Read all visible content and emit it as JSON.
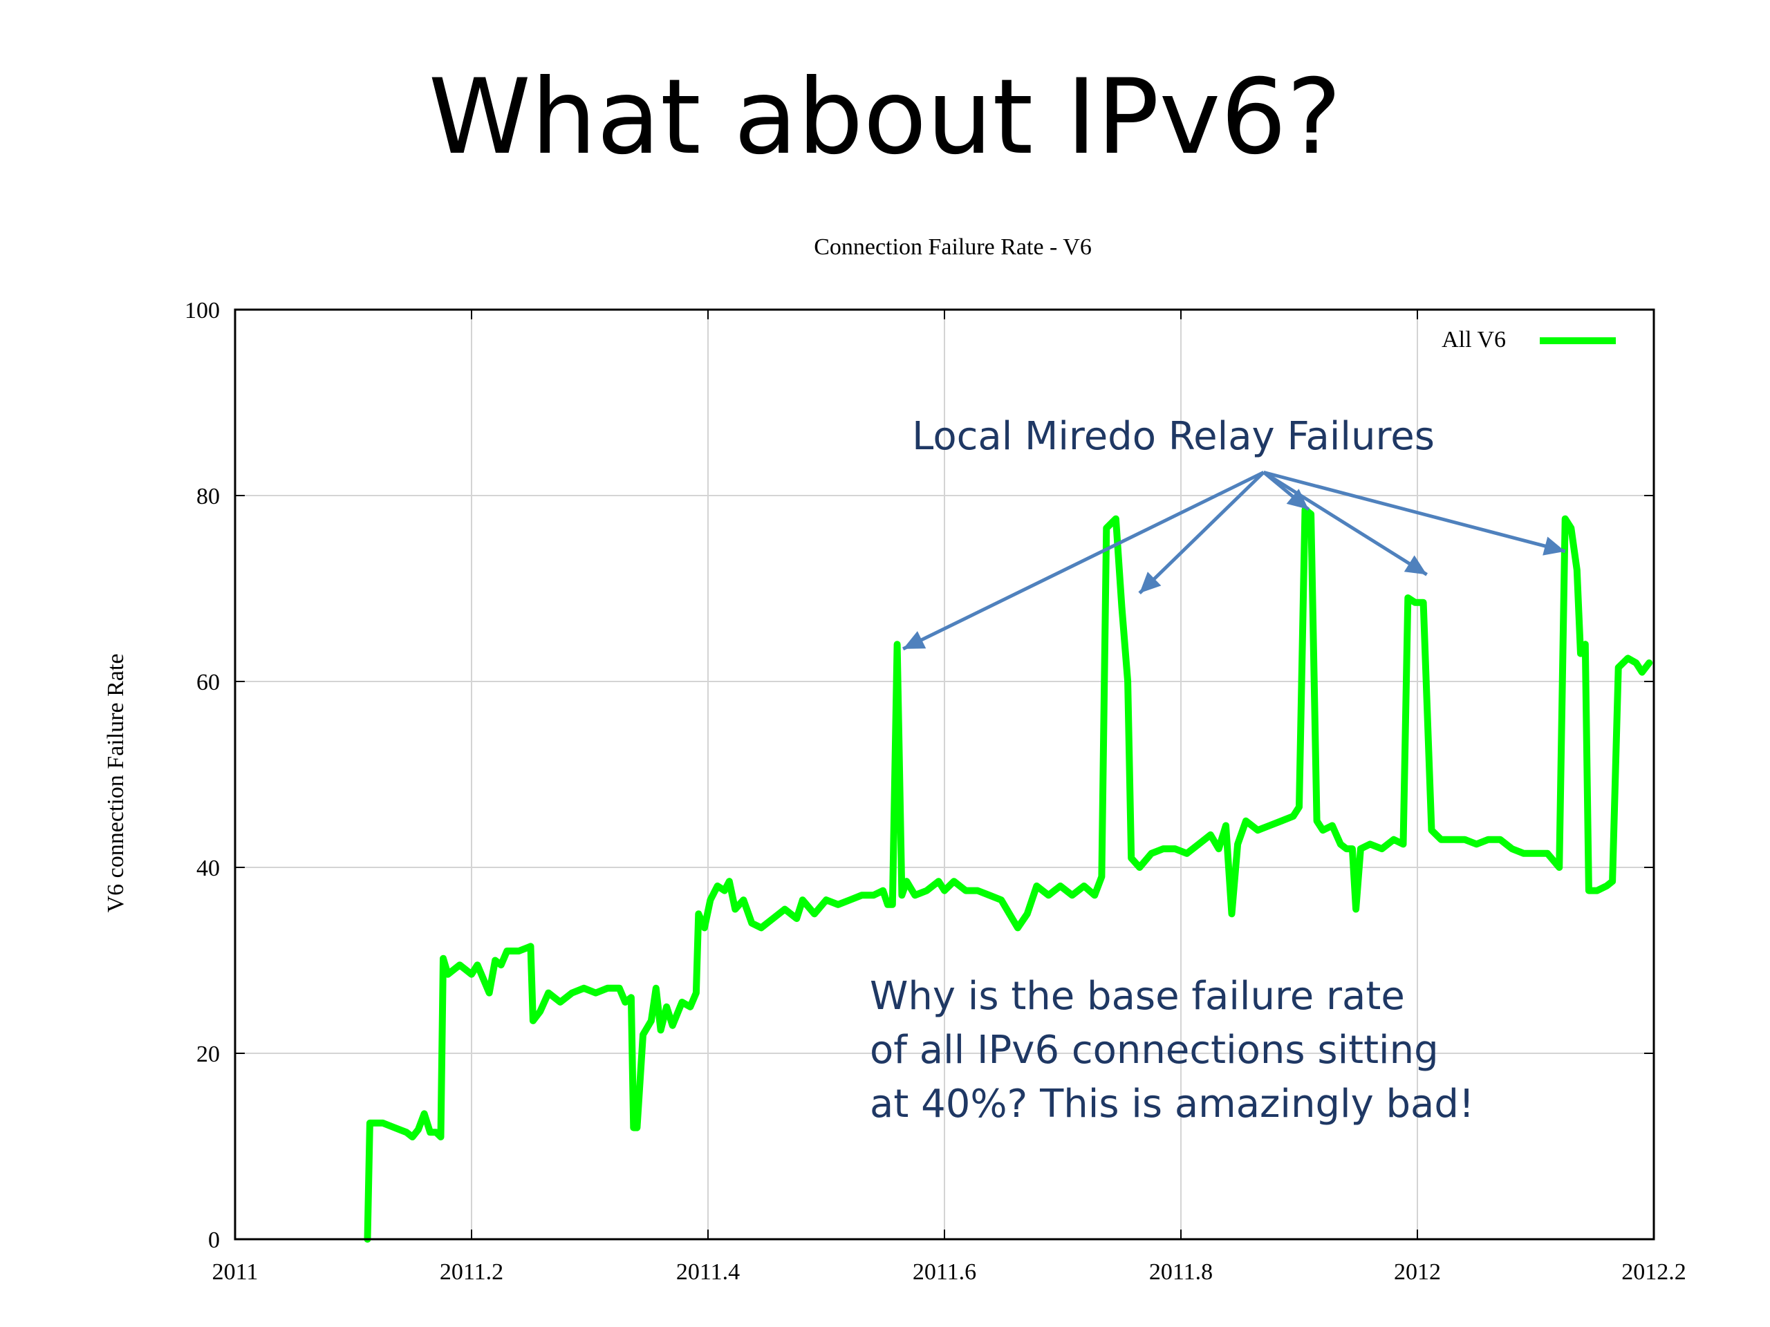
{
  "slide": {
    "title": "What about IPv6?"
  },
  "annotations": {
    "relay_label": "Local Miredo Relay Failures",
    "question_lines": [
      "Why is the base failure rate",
      "of all IPv6 connections sitting",
      "at 40%? This is amazingly bad!"
    ],
    "text_color": "#1f3864",
    "arrow_color": "#4f81bd",
    "arrow_targets": [
      {
        "x": 2011.565,
        "y": 63.5
      },
      {
        "x": 2011.765,
        "y": 69.5
      },
      {
        "x": 2011.908,
        "y": 78.5
      },
      {
        "x": 2012.008,
        "y": 71.5
      },
      {
        "x": 2012.125,
        "y": 74.0
      }
    ],
    "arrow_origin": {
      "x": 2011.87,
      "y": 82.5
    }
  },
  "chart_data": {
    "type": "line",
    "title": "Connection Failure Rate - V6",
    "xlabel": "",
    "ylabel": "V6 connection Failure Rate",
    "xlim": [
      2011,
      2012.2
    ],
    "ylim": [
      0,
      100
    ],
    "xticks": [
      "2011",
      "2011.2",
      "2011.4",
      "2011.6",
      "2011.8",
      "2012",
      "2012.2"
    ],
    "yticks": [
      "0",
      "20",
      "40",
      "60",
      "80",
      "100"
    ],
    "grid": true,
    "legend": "top-right",
    "series": [
      {
        "name": "All V6",
        "color": "#00ff00",
        "points": [
          [
            2011.112,
            0
          ],
          [
            2011.114,
            12.5
          ],
          [
            2011.125,
            12.5
          ],
          [
            2011.135,
            12
          ],
          [
            2011.145,
            11.5
          ],
          [
            2011.15,
            11
          ],
          [
            2011.155,
            11.8
          ],
          [
            2011.16,
            13.5
          ],
          [
            2011.165,
            11.5
          ],
          [
            2011.17,
            11.5
          ],
          [
            2011.174,
            11
          ],
          [
            2011.176,
            30.2
          ],
          [
            2011.18,
            28.5
          ],
          [
            2011.19,
            29.5
          ],
          [
            2011.2,
            28.5
          ],
          [
            2011.205,
            29.5
          ],
          [
            2011.21,
            28
          ],
          [
            2011.215,
            26.5
          ],
          [
            2011.22,
            30
          ],
          [
            2011.225,
            29.5
          ],
          [
            2011.23,
            31
          ],
          [
            2011.24,
            31
          ],
          [
            2011.25,
            31.5
          ],
          [
            2011.252,
            23.5
          ],
          [
            2011.258,
            24.5
          ],
          [
            2011.265,
            26.5
          ],
          [
            2011.275,
            25.5
          ],
          [
            2011.285,
            26.5
          ],
          [
            2011.295,
            27
          ],
          [
            2011.305,
            26.5
          ],
          [
            2011.315,
            27
          ],
          [
            2011.325,
            27
          ],
          [
            2011.33,
            25.5
          ],
          [
            2011.335,
            26
          ],
          [
            2011.337,
            12
          ],
          [
            2011.34,
            12
          ],
          [
            2011.345,
            22
          ],
          [
            2011.352,
            23.5
          ],
          [
            2011.356,
            27
          ],
          [
            2011.36,
            22.5
          ],
          [
            2011.365,
            25
          ],
          [
            2011.37,
            23
          ],
          [
            2011.378,
            25.5
          ],
          [
            2011.385,
            25
          ],
          [
            2011.39,
            26.5
          ],
          [
            2011.392,
            35
          ],
          [
            2011.397,
            33.5
          ],
          [
            2011.402,
            36.5
          ],
          [
            2011.408,
            38
          ],
          [
            2011.414,
            37.5
          ],
          [
            2011.418,
            38.5
          ],
          [
            2011.423,
            35.5
          ],
          [
            2011.43,
            36.5
          ],
          [
            2011.437,
            34
          ],
          [
            2011.445,
            33.5
          ],
          [
            2011.455,
            34.5
          ],
          [
            2011.465,
            35.5
          ],
          [
            2011.475,
            34.5
          ],
          [
            2011.48,
            36.5
          ],
          [
            2011.49,
            35
          ],
          [
            2011.5,
            36.5
          ],
          [
            2011.51,
            36
          ],
          [
            2011.52,
            36.5
          ],
          [
            2011.53,
            37
          ],
          [
            2011.54,
            37
          ],
          [
            2011.548,
            37.5
          ],
          [
            2011.552,
            36
          ],
          [
            2011.556,
            36
          ],
          [
            2011.56,
            64
          ],
          [
            2011.564,
            37
          ],
          [
            2011.568,
            38.5
          ],
          [
            2011.575,
            37
          ],
          [
            2011.585,
            37.5
          ],
          [
            2011.595,
            38.5
          ],
          [
            2011.6,
            37.5
          ],
          [
            2011.608,
            38.5
          ],
          [
            2011.618,
            37.5
          ],
          [
            2011.628,
            37.5
          ],
          [
            2011.638,
            37
          ],
          [
            2011.648,
            36.5
          ],
          [
            2011.655,
            35
          ],
          [
            2011.662,
            33.5
          ],
          [
            2011.67,
            35
          ],
          [
            2011.678,
            38
          ],
          [
            2011.688,
            37
          ],
          [
            2011.698,
            38
          ],
          [
            2011.708,
            37
          ],
          [
            2011.718,
            38
          ],
          [
            2011.727,
            37
          ],
          [
            2011.733,
            39
          ],
          [
            2011.737,
            76.5
          ],
          [
            2011.745,
            77.5
          ],
          [
            2011.75,
            68
          ],
          [
            2011.755,
            60
          ],
          [
            2011.758,
            41
          ],
          [
            2011.765,
            40
          ],
          [
            2011.775,
            41.5
          ],
          [
            2011.785,
            42
          ],
          [
            2011.795,
            42
          ],
          [
            2011.805,
            41.5
          ],
          [
            2011.815,
            42.5
          ],
          [
            2011.825,
            43.5
          ],
          [
            2011.832,
            42
          ],
          [
            2011.838,
            44.5
          ],
          [
            2011.843,
            35
          ],
          [
            2011.848,
            42.5
          ],
          [
            2011.855,
            45
          ],
          [
            2011.865,
            44
          ],
          [
            2011.875,
            44.5
          ],
          [
            2011.885,
            45
          ],
          [
            2011.895,
            45.5
          ],
          [
            2011.9,
            46.5
          ],
          [
            2011.905,
            78.5
          ],
          [
            2011.91,
            78
          ],
          [
            2011.915,
            45
          ],
          [
            2011.92,
            44
          ],
          [
            2011.928,
            44.5
          ],
          [
            2011.935,
            42.5
          ],
          [
            2011.94,
            42
          ],
          [
            2011.945,
            42
          ],
          [
            2011.948,
            35.5
          ],
          [
            2011.952,
            42
          ],
          [
            2011.96,
            42.5
          ],
          [
            2011.97,
            42
          ],
          [
            2011.98,
            43
          ],
          [
            2011.988,
            42.5
          ],
          [
            2011.992,
            69
          ],
          [
            2011.998,
            68.5
          ],
          [
            2012.005,
            68.5
          ],
          [
            2012.012,
            44
          ],
          [
            2012.02,
            43
          ],
          [
            2012.03,
            43
          ],
          [
            2012.04,
            43
          ],
          [
            2012.05,
            42.5
          ],
          [
            2012.06,
            43
          ],
          [
            2012.07,
            43
          ],
          [
            2012.08,
            42
          ],
          [
            2012.09,
            41.5
          ],
          [
            2012.1,
            41.5
          ],
          [
            2012.11,
            41.5
          ],
          [
            2012.12,
            40
          ],
          [
            2012.125,
            77.5
          ],
          [
            2012.13,
            76.5
          ],
          [
            2012.135,
            72
          ],
          [
            2012.138,
            63
          ],
          [
            2012.142,
            64
          ],
          [
            2012.145,
            37.5
          ],
          [
            2012.152,
            37.5
          ],
          [
            2012.16,
            38
          ],
          [
            2012.165,
            38.5
          ],
          [
            2012.17,
            61.5
          ],
          [
            2012.178,
            62.5
          ],
          [
            2012.185,
            62
          ],
          [
            2012.19,
            61
          ],
          [
            2012.196,
            62
          ]
        ]
      }
    ]
  }
}
